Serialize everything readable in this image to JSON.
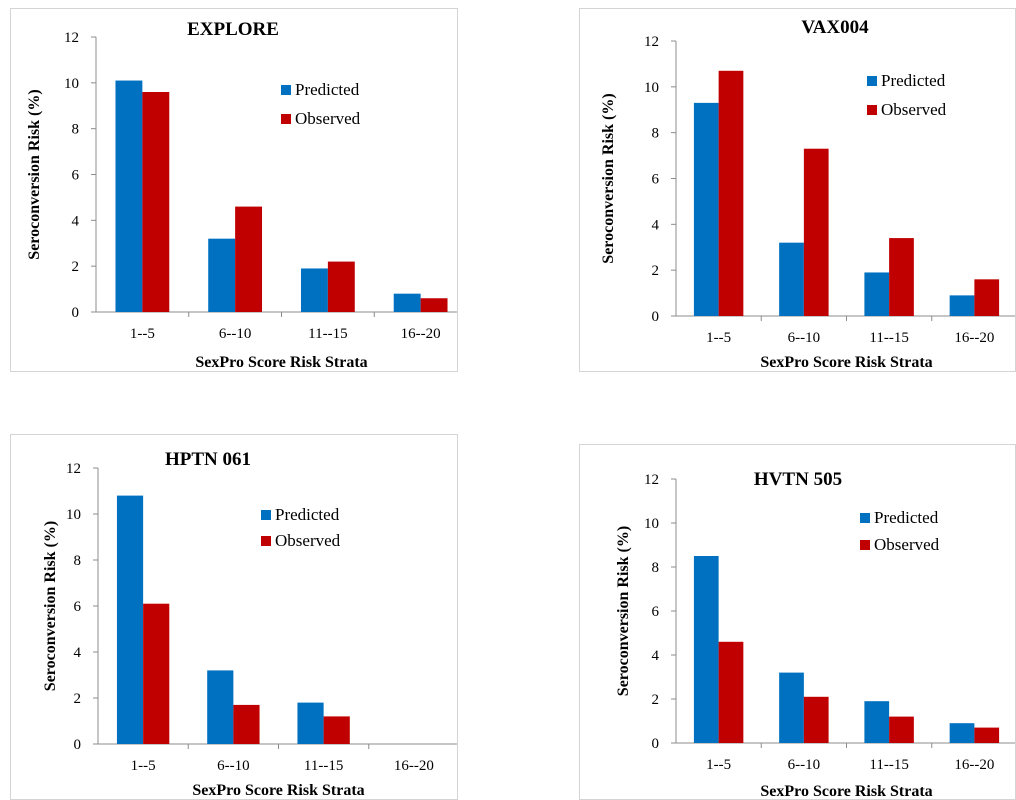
{
  "chart_data": [
    {
      "type": "bar",
      "title": "EXPLORE",
      "xlabel": "SexPro Score Risk Strata",
      "ylabel": "Seroconversion Risk (%)",
      "categories": [
        "1--5",
        "6--10",
        "11--15",
        "16--20"
      ],
      "ylim": [
        0,
        12
      ],
      "yticks": [
        0,
        2,
        4,
        6,
        8,
        10,
        12
      ],
      "grid": false,
      "legend": "top-right",
      "series": [
        {
          "name": "Predicted",
          "color": "#0070c0",
          "values": [
            10.1,
            3.2,
            1.9,
            0.8
          ]
        },
        {
          "name": "Observed",
          "color": "#c00000",
          "values": [
            9.6,
            4.6,
            2.2,
            0.6
          ]
        }
      ]
    },
    {
      "type": "bar",
      "title": "VAX004",
      "xlabel": "SexPro Score Risk Strata",
      "ylabel": "Seroconversion Risk (%)",
      "categories": [
        "1--5",
        "6--10",
        "11--15",
        "16--20"
      ],
      "ylim": [
        0,
        12
      ],
      "yticks": [
        0,
        2,
        4,
        6,
        8,
        10,
        12
      ],
      "grid": false,
      "legend": "top-right",
      "series": [
        {
          "name": "Predicted",
          "color": "#0070c0",
          "values": [
            9.3,
            3.2,
            1.9,
            0.9
          ]
        },
        {
          "name": "Observed",
          "color": "#c00000",
          "values": [
            10.7,
            7.3,
            3.4,
            1.6
          ]
        }
      ]
    },
    {
      "type": "bar",
      "title": "HPTN 061",
      "xlabel": "SexPro Score Risk Strata",
      "ylabel": "Seroconversion Risk (%)",
      "categories": [
        "1--5",
        "6--10",
        "11--15",
        "16--20"
      ],
      "ylim": [
        0,
        12
      ],
      "yticks": [
        0,
        2,
        4,
        6,
        8,
        10,
        12
      ],
      "grid": false,
      "legend": "top-right",
      "series": [
        {
          "name": "Predicted",
          "color": "#0070c0",
          "values": [
            10.8,
            3.2,
            1.8,
            0
          ]
        },
        {
          "name": "Observed",
          "color": "#c00000",
          "values": [
            6.1,
            1.7,
            1.2,
            0
          ]
        }
      ]
    },
    {
      "type": "bar",
      "title": "HVTN 505",
      "xlabel": "SexPro Score Risk Strata",
      "ylabel": "Seroconversion Risk (%)",
      "categories": [
        "1--5",
        "6--10",
        "11--15",
        "16--20"
      ],
      "ylim": [
        0,
        12
      ],
      "yticks": [
        0,
        2,
        4,
        6,
        8,
        10,
        12
      ],
      "grid": false,
      "legend": "top-right",
      "series": [
        {
          "name": "Predicted",
          "color": "#0070c0",
          "values": [
            8.5,
            3.2,
            1.9,
            0.9
          ]
        },
        {
          "name": "Observed",
          "color": "#c00000",
          "values": [
            4.6,
            2.1,
            1.2,
            0.7
          ]
        }
      ]
    }
  ]
}
